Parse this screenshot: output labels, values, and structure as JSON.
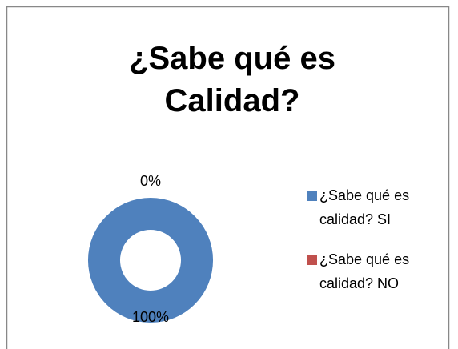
{
  "chart_data": {
    "type": "donut",
    "title": "¿Sabe qué es Calidad?",
    "categories": [
      "¿Sabe qué es calidad? SI",
      "¿Sabe qué es calidad? NO"
    ],
    "values": [
      100,
      0
    ],
    "value_labels": [
      "100%",
      "0%"
    ],
    "colors": [
      "#4f81bd",
      "#c0504d"
    ],
    "legend": "right"
  }
}
